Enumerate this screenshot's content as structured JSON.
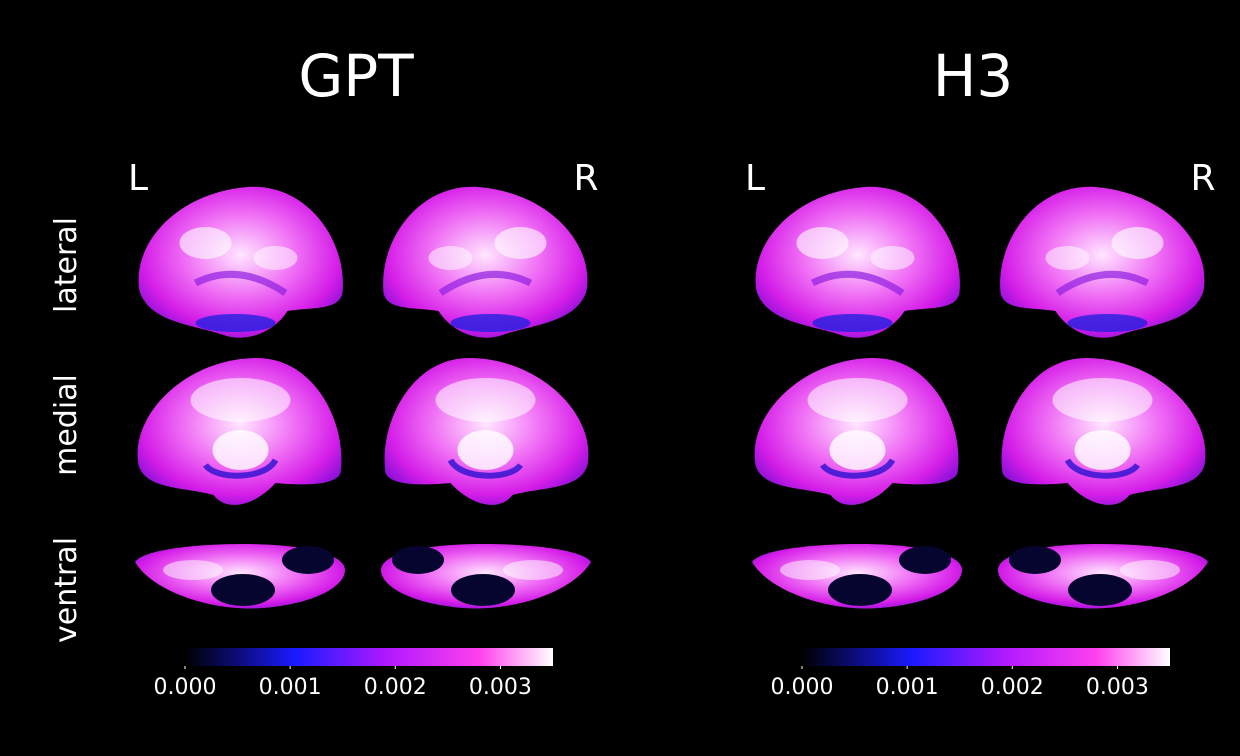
{
  "row_labels": [
    "lateral",
    "medial",
    "ventral"
  ],
  "panels": [
    {
      "title": "GPT",
      "left_label": "L",
      "right_label": "R",
      "colorbar": {
        "lim": [
          0,
          0.0035
        ],
        "ticks": [
          {
            "value": 0,
            "label": "0.000"
          },
          {
            "value": 0.001,
            "label": "0.001"
          },
          {
            "value": 0.002,
            "label": "0.002"
          },
          {
            "value": 0.003,
            "label": "0.003"
          }
        ]
      }
    },
    {
      "title": "H3",
      "left_label": "L",
      "right_label": "R",
      "colorbar": {
        "lim": [
          0,
          0.0035
        ],
        "ticks": [
          {
            "value": 0,
            "label": "0.000"
          },
          {
            "value": 0.001,
            "label": "0.001"
          },
          {
            "value": 0.002,
            "label": "0.002"
          },
          {
            "value": 0.003,
            "label": "0.003"
          }
        ]
      }
    }
  ]
}
